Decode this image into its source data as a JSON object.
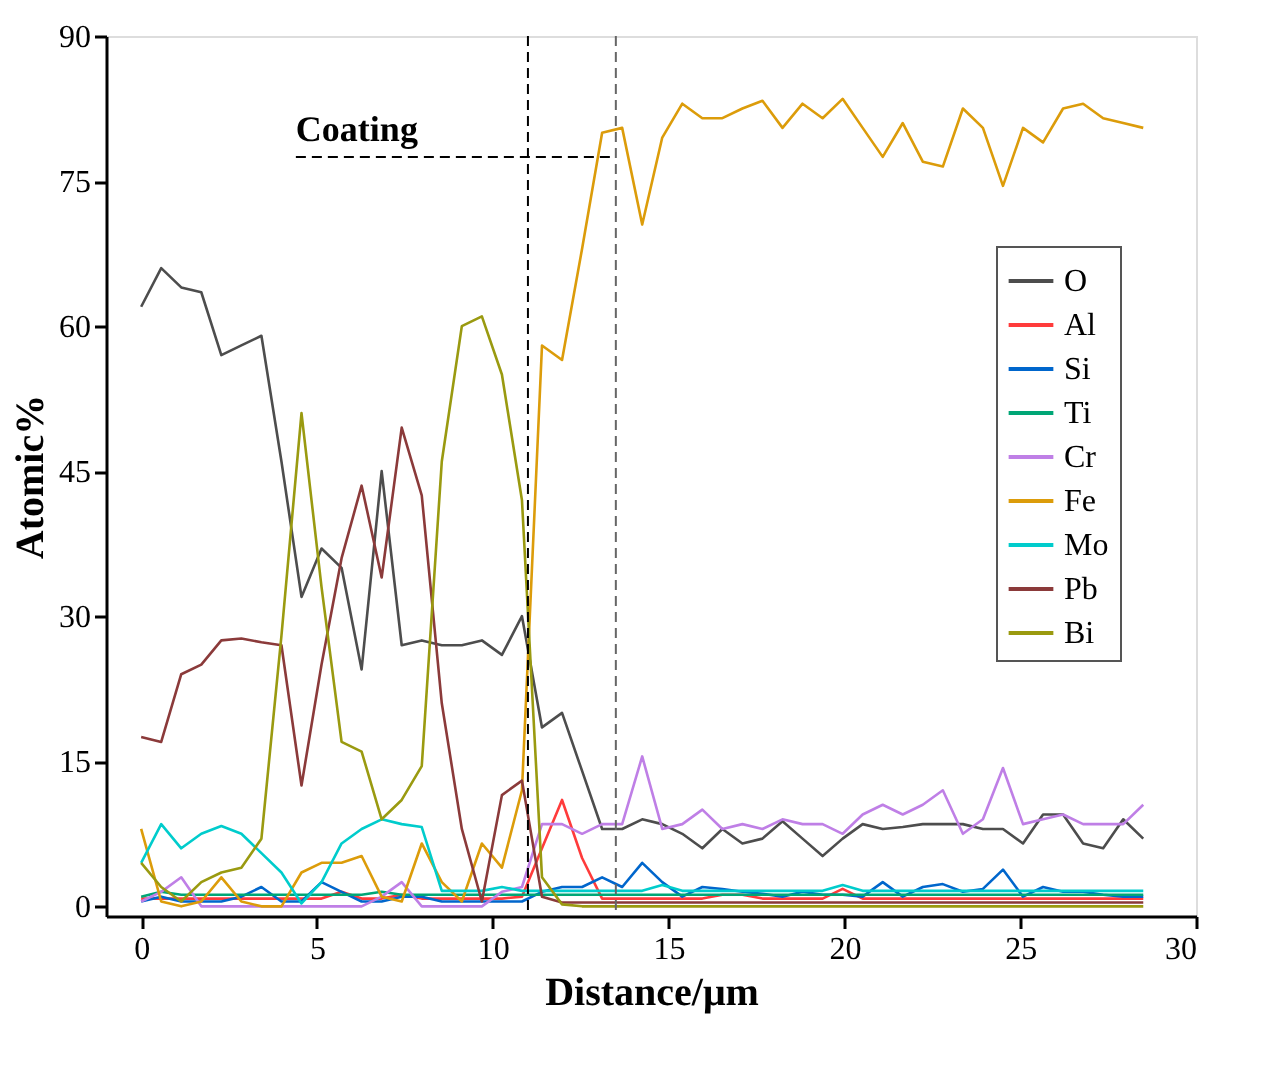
{
  "chart_data": {
    "type": "line",
    "xlabel": "Distance/μm",
    "ylabel": "Atomic%",
    "xlim": [
      -1,
      30
    ],
    "ylim": [
      -1,
      90
    ],
    "xticks": [
      0,
      5,
      10,
      15,
      20,
      25,
      30
    ],
    "yticks": [
      0,
      15,
      30,
      45,
      60,
      75,
      90
    ],
    "x": [
      0,
      0.57,
      1.14,
      1.71,
      2.28,
      2.85,
      3.42,
      3.99,
      4.56,
      5.13,
      5.7,
      6.27,
      6.84,
      7.41,
      7.98,
      8.55,
      9.12,
      9.69,
      10.26,
      10.83,
      11.4,
      11.97,
      12.54,
      13.11,
      13.68,
      14.25,
      14.82,
      15.39,
      15.96,
      16.53,
      17.1,
      17.67,
      18.24,
      18.81,
      19.38,
      19.95,
      20.52,
      21.09,
      21.66,
      22.23,
      22.8,
      23.37,
      23.94,
      24.51,
      25.08,
      25.65,
      26.22,
      26.79,
      27.36,
      27.93,
      28.5
    ],
    "series": [
      {
        "name": "O",
        "color": "#4d4d4d",
        "values": [
          62,
          66,
          64,
          63.5,
          57,
          58,
          59,
          46,
          32,
          37,
          35,
          24.5,
          45,
          27,
          27.5,
          27,
          27,
          27.5,
          26,
          30,
          18.5,
          20,
          14,
          8,
          8,
          9,
          8.5,
          7.5,
          6,
          8,
          6.5,
          7,
          8.8,
          7,
          5.2,
          7,
          8.5,
          8,
          8.2,
          8.5,
          8.5,
          8.5,
          8,
          8,
          6.5,
          9.5,
          9.5,
          6.5,
          6,
          9,
          7
        ]
      },
      {
        "name": "Al",
        "color": "#ff3b3b",
        "values": [
          0.8,
          0.8,
          0.8,
          0.8,
          0.8,
          0.8,
          0.8,
          0.8,
          0.8,
          0.8,
          1.5,
          0.8,
          0.8,
          1.2,
          0.8,
          0.8,
          0.8,
          0.8,
          0.8,
          1,
          6,
          11,
          5,
          0.8,
          0.8,
          0.8,
          0.8,
          0.8,
          0.8,
          1.2,
          1.2,
          0.8,
          0.8,
          0.8,
          0.8,
          1.8,
          0.8,
          0.8,
          0.8,
          0.8,
          0.8,
          0.8,
          0.8,
          0.8,
          0.8,
          0.8,
          0.8,
          0.8,
          0.8,
          0.8,
          0.8
        ]
      },
      {
        "name": "Si",
        "color": "#0066cc",
        "values": [
          0.5,
          1,
          0.5,
          0.5,
          0.5,
          1,
          2,
          0.5,
          0.5,
          2.5,
          1.5,
          0.5,
          0.5,
          1,
          1,
          0.5,
          0.5,
          0.5,
          0.5,
          0.5,
          1.5,
          2,
          2,
          3,
          2,
          4.5,
          2.5,
          1,
          2,
          1.8,
          1.5,
          1.3,
          1,
          1.5,
          1.2,
          1.2,
          1,
          2.5,
          1,
          2,
          2.3,
          1.5,
          1.8,
          3.8,
          1,
          2,
          1.5,
          1.5,
          1.2,
          1,
          1
        ]
      },
      {
        "name": "Ti",
        "color": "#00a676",
        "values": [
          1,
          1.5,
          1.2,
          1.2,
          1.2,
          1.2,
          1.2,
          1.2,
          1.2,
          1.2,
          1.2,
          1.2,
          1.5,
          1.2,
          1.2,
          1.2,
          1.2,
          1.2,
          1.2,
          1.2,
          1.2,
          1.2,
          1.2,
          1.2,
          1.2,
          1.2,
          1.2,
          1.2,
          1.2,
          1.2,
          1.2,
          1.2,
          1.2,
          1.2,
          1.2,
          1.2,
          1.2,
          1.2,
          1.2,
          1.2,
          1.2,
          1.2,
          1.2,
          1.2,
          1.2,
          1.2,
          1.2,
          1.2,
          1.2,
          1.2,
          1.2
        ]
      },
      {
        "name": "Cr",
        "color": "#bf7fe6",
        "values": [
          0.5,
          1.5,
          3,
          0,
          0,
          0,
          0,
          0,
          0,
          0,
          0,
          0,
          1,
          2.5,
          0,
          0,
          0,
          0,
          1.5,
          2,
          8.5,
          8.5,
          7.5,
          8.5,
          8.5,
          15.5,
          8,
          8.5,
          10,
          8,
          8.5,
          8,
          9,
          8.5,
          8.5,
          7.5,
          9.5,
          10.5,
          9.5,
          10.5,
          12,
          7.5,
          9,
          14.3,
          8.5,
          9,
          9.5,
          8.5,
          8.5,
          8.5,
          10.5
        ]
      },
      {
        "name": "Fe",
        "color": "#dc9c0a",
        "values": [
          8,
          0.5,
          0,
          0.5,
          3,
          0.5,
          0,
          0,
          3.5,
          4.5,
          4.5,
          5.2,
          1,
          0.5,
          6.5,
          2.5,
          0.5,
          6.5,
          4,
          12,
          58,
          56.5,
          68,
          80,
          80.5,
          70.5,
          79.5,
          83,
          81.5,
          81.5,
          82.5,
          83.3,
          80.5,
          83,
          81.5,
          83.5,
          80.5,
          77.5,
          81,
          77,
          76.5,
          82.5,
          80.5,
          74.5,
          80.5,
          79,
          82.5,
          83,
          81.5,
          81,
          80.5
        ]
      },
      {
        "name": "Mo",
        "color": "#00cccc",
        "values": [
          4.5,
          8.5,
          6,
          7.5,
          8.3,
          7.5,
          5.5,
          3.5,
          0.3,
          2.5,
          6.5,
          8,
          9,
          8.5,
          8.2,
          1.6,
          1.6,
          1.6,
          2,
          1.6,
          1.6,
          1.6,
          1.6,
          1.6,
          1.6,
          1.6,
          2.2,
          1.6,
          1.6,
          1.6,
          1.6,
          1.6,
          1.6,
          1.6,
          1.6,
          2.2,
          1.6,
          1.6,
          1.6,
          1.6,
          1.6,
          1.6,
          1.6,
          1.6,
          1.6,
          1.6,
          1.6,
          1.6,
          1.6,
          1.6,
          1.6
        ]
      },
      {
        "name": "Pb",
        "color": "#8b3a3a",
        "values": [
          17.5,
          17,
          24,
          25,
          27.5,
          27.7,
          27.3,
          27,
          12.5,
          25,
          36,
          43.5,
          34,
          49.5,
          42.5,
          21,
          8,
          0.5,
          11.5,
          13,
          1,
          0.4,
          0.4,
          0.4,
          0.4,
          0.4,
          0.4,
          0.4,
          0.4,
          0.4,
          0.4,
          0.4,
          0.4,
          0.4,
          0.4,
          0.4,
          0.4,
          0.4,
          0.4,
          0.4,
          0.4,
          0.4,
          0.4,
          0.4,
          0.4,
          0.4,
          0.4,
          0.4,
          0.4,
          0.4,
          0.4
        ]
      },
      {
        "name": "Bi",
        "color": "#9a9a10",
        "values": [
          4.5,
          2,
          0.5,
          2.5,
          3.5,
          4,
          7,
          28,
          51,
          33,
          17,
          16,
          9,
          11,
          14.5,
          46,
          60,
          61,
          55,
          42,
          3,
          0.2,
          0,
          0,
          0,
          0,
          0,
          0,
          0,
          0,
          0,
          0,
          0,
          0,
          0,
          0,
          0,
          0,
          0,
          0,
          0,
          0,
          0,
          0,
          0,
          0,
          0,
          0,
          0,
          0,
          0
        ]
      }
    ],
    "ref_lines": [
      {
        "axis": "x",
        "value": 11,
        "label": null,
        "color": "#000000",
        "line_style": "dashed"
      },
      {
        "axis": "x",
        "value": 13.5,
        "label": null,
        "color": "#666666",
        "line_style": "dashed"
      }
    ],
    "annotations": [
      {
        "text": "Coating",
        "x": 13.4,
        "y": 77.5
      }
    ],
    "line_style": "solid",
    "legend": "right",
    "grid": false
  }
}
